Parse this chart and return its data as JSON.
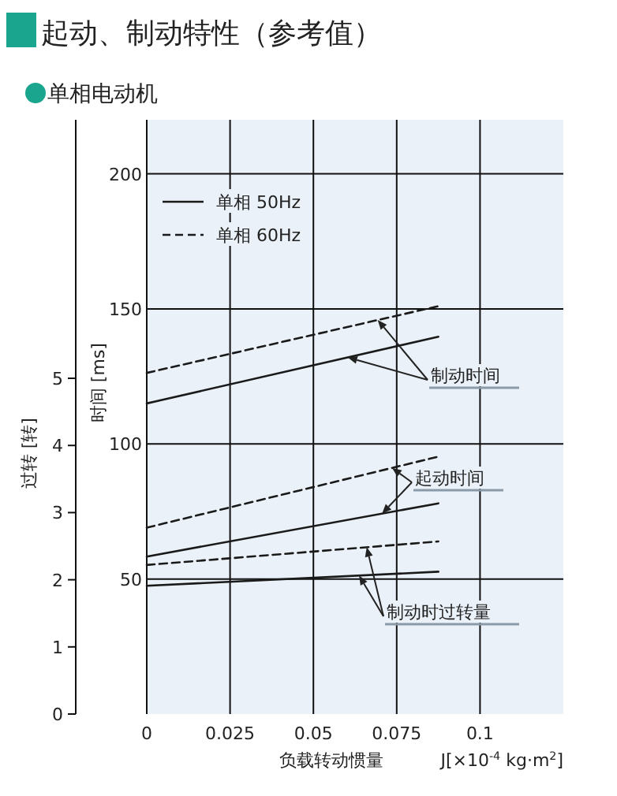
{
  "chart_data": {
    "type": "line",
    "title": "起动、制动特性（参考值）",
    "subtitle": "单相电动机",
    "xlabel": "负载转动惯量",
    "ylabel": "时间 [ms]",
    "y2label": "过转 [转]",
    "x": [
      0,
      0.0875
    ],
    "series": [
      {
        "name": "单相 50Hz",
        "color": "#1a1a1a",
        "values": [
          115,
          139.7
        ],
        "line_style": "solid"
      },
      {
        "name": "单相 60Hz",
        "color": "#1a1a1a",
        "values": [
          126.3,
          151
        ],
        "line_style": "dashed"
      },
      {
        "color": "#1a1a1a",
        "values": [
          58.3,
          78
        ],
        "line_style": "solid"
      },
      {
        "color": "#1a1a1a",
        "values": [
          69,
          95.3
        ],
        "line_style": "dashed"
      },
      {
        "color": "#1a1a1a",
        "values": [
          1.91,
          2.12
        ],
        "line_style": "solid",
        "axis": "y2"
      },
      {
        "color": "#1a1a1a",
        "values": [
          2.22,
          2.57
        ],
        "line_style": "dashed",
        "axis": "y2"
      }
    ],
    "xlim": [
      0,
      0.125
    ],
    "xticks": [
      0,
      0.025,
      0.05,
      0.075,
      0.1
    ],
    "ylim": [
      0,
      220
    ],
    "yticks": [
      50,
      100,
      150,
      200
    ],
    "y2lim": [
      0,
      8.85
    ],
    "y2ticks": [
      0,
      1,
      2,
      3,
      4,
      5
    ],
    "grid": true,
    "legend": "top left",
    "annotations": [
      {
        "text": "制动时间",
        "x": 0.0693,
        "y": 145.9
      },
      {
        "text": "起动时间",
        "x": 0.0736,
        "y": 91.1
      },
      "制动时过转量",
      "J[×10$^{-4}$ kg·m$^{2}$]"
    ]
  }
}
